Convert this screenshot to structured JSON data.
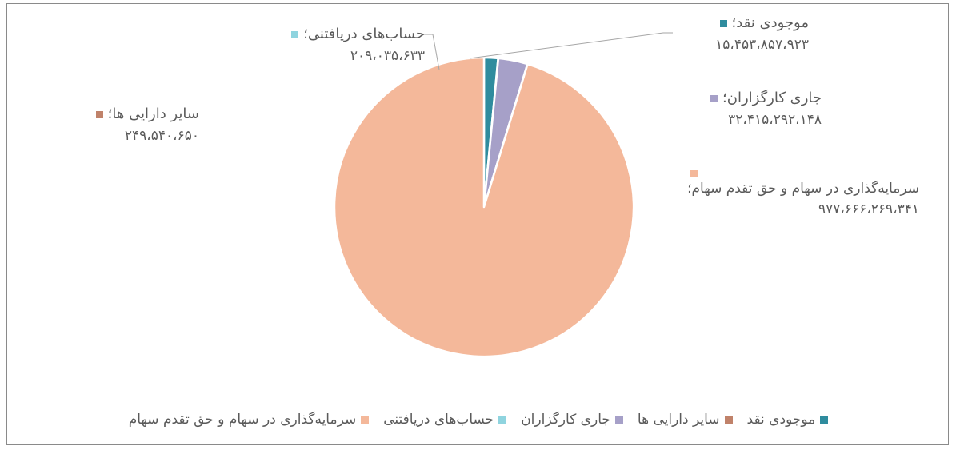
{
  "chart_data": {
    "type": "pie",
    "slices": [
      {
        "name": "موجودی نقد",
        "label": "موجودی نقد؛",
        "value": 15453857923,
        "value_text": "۱۵،۴۵۳،۸۵۷،۹۲۳",
        "color": "#2f8c9e"
      },
      {
        "name": "سایر دارایی ها",
        "label": "سایر دارایی ها؛",
        "value": 249540650,
        "value_text": "۲۴۹،۵۴۰،۶۵۰",
        "color": "#c0826a"
      },
      {
        "name": "جاری کارگزاران",
        "label": "جاری کارگزاران؛",
        "value": 32415292148,
        "value_text": "۳۲،۴۱۵،۲۹۲،۱۴۸",
        "color": "#a6a0c8"
      },
      {
        "name": "حساب‌های دریافتنی",
        "label": "حساب‌های دریافتنی؛",
        "value": 209035633,
        "value_text": "۲۰۹،۰۳۵،۶۳۳",
        "color": "#8fd4df"
      },
      {
        "name": "سرمایه‌گذاری در سهام و حق تقدم سهام",
        "label": "سرمایه‌گذاری در سهام و حق تقدم سهام؛",
        "value": 977666269341,
        "value_text": "۹۷۷،۶۶۶،۲۶۹،۳۴۱",
        "color": "#f4b89a"
      }
    ],
    "legend_position": "bottom",
    "title": ""
  }
}
